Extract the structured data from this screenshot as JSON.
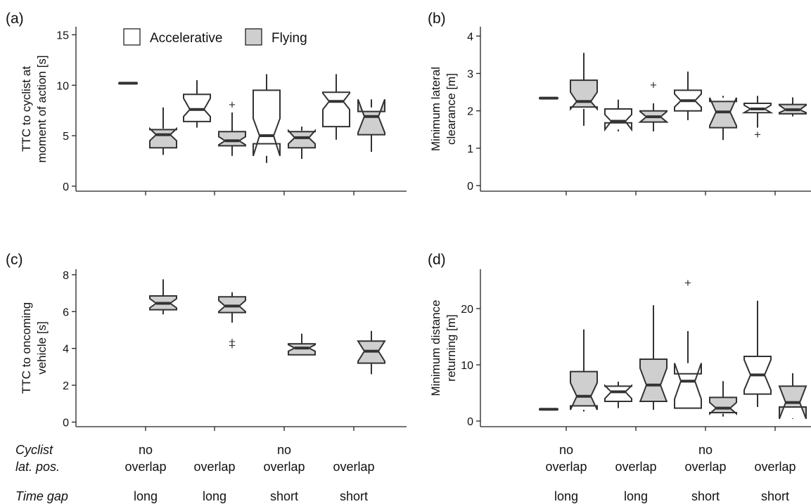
{
  "figure": {
    "legend": [
      {
        "label": "Accelerative",
        "color": "#ffffff"
      },
      {
        "label": "Flying",
        "color": "#cfcfcf"
      }
    ],
    "row_headers": {
      "lat_pos": [
        "Cyclist",
        "lat. pos."
      ],
      "time_gap": "Time gap"
    },
    "colors": {
      "stroke": "#333333",
      "accelerative_fill": "#ffffff",
      "flying_fill": "#cfcfcf"
    }
  },
  "chart_data": [
    {
      "type": "boxplot",
      "panel": "(a)",
      "ylabel": [
        "TTC to cyclist at",
        "moment of action [s]"
      ],
      "ylim": [
        -0.5,
        15.8
      ],
      "yticks": [
        0,
        5,
        10,
        15
      ],
      "categories": [
        {
          "lat_pos": [
            "no",
            "overlap"
          ],
          "time_gap": "long"
        },
        {
          "lat_pos": [
            "overlap"
          ],
          "time_gap": "long"
        },
        {
          "lat_pos": [
            "no",
            "overlap"
          ],
          "time_gap": "short"
        },
        {
          "lat_pos": [
            "overlap"
          ],
          "time_gap": "short"
        }
      ],
      "series": [
        {
          "name": "Accelerative",
          "boxes": [
            {
              "whisker_low": 10.2,
              "q1": 10.2,
              "median": 10.2,
              "q3": 10.2,
              "whisker_high": 10.2,
              "notch_low": 10.2,
              "notch_high": 10.2,
              "outliers": []
            },
            {
              "whisker_low": 5.8,
              "q1": 6.4,
              "median": 7.6,
              "q3": 9.1,
              "whisker_high": 10.5,
              "notch_low": 6.9,
              "notch_high": 8.7,
              "outliers": []
            },
            {
              "whisker_low": 2.3,
              "q1": 4.2,
              "median": 5.0,
              "q3": 9.5,
              "whisker_high": 11.1,
              "notch_low": 3.0,
              "notch_high": 6.7,
              "outliers": []
            },
            {
              "whisker_low": 4.6,
              "q1": 5.9,
              "median": 8.4,
              "q3": 9.3,
              "whisker_high": 11.1,
              "notch_low": 7.6,
              "notch_high": 9.2,
              "outliers": []
            }
          ]
        },
        {
          "name": "Flying",
          "boxes": [
            {
              "whisker_low": 3.1,
              "q1": 3.8,
              "median": 5.1,
              "q3": 5.6,
              "whisker_high": 7.8,
              "notch_low": 4.5,
              "notch_high": 5.7,
              "outliers": []
            },
            {
              "whisker_low": 3.0,
              "q1": 4.0,
              "median": 4.5,
              "q3": 5.4,
              "whisker_high": 7.3,
              "notch_low": 4.1,
              "notch_high": 4.9,
              "outliers": [
                8.1
              ]
            },
            {
              "whisker_low": 2.7,
              "q1": 3.8,
              "median": 4.8,
              "q3": 5.4,
              "whisker_high": 5.9,
              "notch_low": 4.2,
              "notch_high": 5.5,
              "outliers": []
            },
            {
              "whisker_low": 3.4,
              "q1": 5.1,
              "median": 6.9,
              "q3": 7.4,
              "whisker_high": 7.8,
              "notch_low": 5.3,
              "notch_high": 8.6,
              "outliers": []
            }
          ]
        }
      ]
    },
    {
      "type": "boxplot",
      "panel": "(b)",
      "ylabel": [
        "Minimum lateral",
        "clearance [m]"
      ],
      "ylim": [
        -0.15,
        4.25
      ],
      "yticks": [
        0,
        1,
        2,
        3,
        4
      ],
      "categories": [
        {
          "lat_pos": [
            "no",
            "overlap"
          ],
          "time_gap": "long"
        },
        {
          "lat_pos": [
            "overlap"
          ],
          "time_gap": "long"
        },
        {
          "lat_pos": [
            "no",
            "overlap"
          ],
          "time_gap": "short"
        },
        {
          "lat_pos": [
            "overlap"
          ],
          "time_gap": "short"
        }
      ],
      "series": [
        {
          "name": "Accelerative",
          "boxes": [
            {
              "whisker_low": 2.34,
              "q1": 2.34,
              "median": 2.34,
              "q3": 2.34,
              "whisker_high": 2.34,
              "notch_low": 2.34,
              "notch_high": 2.34,
              "outliers": []
            },
            {
              "whisker_low": 1.45,
              "q1": 1.68,
              "median": 1.72,
              "q3": 2.05,
              "whisker_high": 2.3,
              "notch_low": 1.5,
              "notch_high": 1.9,
              "outliers": []
            },
            {
              "whisker_low": 1.75,
              "q1": 2.0,
              "median": 2.27,
              "q3": 2.55,
              "whisker_high": 3.05,
              "notch_low": 2.1,
              "notch_high": 2.45,
              "outliers": []
            },
            {
              "whisker_low": 1.55,
              "q1": 1.95,
              "median": 2.05,
              "q3": 2.2,
              "whisker_high": 2.4,
              "notch_low": 1.95,
              "notch_high": 2.15,
              "outliers": [
                1.37
              ]
            }
          ]
        },
        {
          "name": "Flying",
          "boxes": [
            {
              "whisker_low": 1.6,
              "q1": 2.1,
              "median": 2.25,
              "q3": 2.82,
              "whisker_high": 3.55,
              "notch_low": 2.05,
              "notch_high": 2.5,
              "outliers": []
            },
            {
              "whisker_low": 1.45,
              "q1": 1.7,
              "median": 1.84,
              "q3": 2.0,
              "whisker_high": 2.2,
              "notch_low": 1.7,
              "notch_high": 1.98,
              "outliers": [
                2.7
              ]
            },
            {
              "whisker_low": 1.22,
              "q1": 1.55,
              "median": 1.97,
              "q3": 2.25,
              "whisker_high": 2.4,
              "notch_low": 1.6,
              "notch_high": 2.35,
              "outliers": []
            },
            {
              "whisker_low": 1.85,
              "q1": 1.92,
              "median": 2.03,
              "q3": 2.17,
              "whisker_high": 2.36,
              "notch_low": 1.95,
              "notch_high": 2.15,
              "outliers": []
            }
          ]
        }
      ]
    },
    {
      "type": "boxplot",
      "panel": "(c)",
      "ylabel": [
        "TTC to oncoming",
        "vehicle [s]"
      ],
      "ylim": [
        -0.25,
        8.3
      ],
      "yticks": [
        0,
        2,
        4,
        6,
        8
      ],
      "categories": [
        {
          "lat_pos": [
            "no",
            "overlap"
          ],
          "time_gap": "long"
        },
        {
          "lat_pos": [
            "overlap"
          ],
          "time_gap": "long"
        },
        {
          "lat_pos": [
            "no",
            "overlap"
          ],
          "time_gap": "short"
        },
        {
          "lat_pos": [
            "overlap"
          ],
          "time_gap": "short"
        }
      ],
      "series": [
        {
          "name": "Accelerative",
          "boxes": [
            null,
            null,
            null,
            null
          ]
        },
        {
          "name": "Flying",
          "boxes": [
            {
              "whisker_low": 5.85,
              "q1": 6.1,
              "median": 6.45,
              "q3": 6.85,
              "whisker_high": 7.75,
              "notch_low": 6.2,
              "notch_high": 6.7,
              "outliers": []
            },
            {
              "whisker_low": 5.4,
              "q1": 5.95,
              "median": 6.3,
              "q3": 6.8,
              "whisker_high": 7.05,
              "notch_low": 6.0,
              "notch_high": 6.6,
              "outliers": [
                4.38,
                4.18
              ]
            },
            {
              "whisker_low": 3.65,
              "q1": 3.65,
              "median": 4.02,
              "q3": 4.25,
              "whisker_high": 4.8,
              "notch_low": 3.85,
              "notch_high": 4.2,
              "outliers": []
            },
            {
              "whisker_low": 2.6,
              "q1": 3.2,
              "median": 3.85,
              "q3": 4.4,
              "whisker_high": 4.95,
              "notch_low": 3.3,
              "notch_high": 4.4,
              "outliers": []
            }
          ]
        }
      ]
    },
    {
      "type": "boxplot",
      "panel": "(d)",
      "ylabel": [
        "Minimum distance",
        "returning [m]"
      ],
      "ylim": [
        -1.0,
        27.0
      ],
      "yticks": [
        0,
        10,
        20
      ],
      "categories": [
        {
          "lat_pos": [
            "no",
            "overlap"
          ],
          "time_gap": "long"
        },
        {
          "lat_pos": [
            "overlap"
          ],
          "time_gap": "long"
        },
        {
          "lat_pos": [
            "no",
            "overlap"
          ],
          "time_gap": "short"
        },
        {
          "lat_pos": [
            "overlap"
          ],
          "time_gap": "short"
        }
      ],
      "series": [
        {
          "name": "Accelerative",
          "boxes": [
            {
              "whisker_low": 2.1,
              "q1": 2.1,
              "median": 2.1,
              "q3": 2.1,
              "whisker_high": 2.1,
              "notch_low": 2.1,
              "notch_high": 2.1,
              "outliers": []
            },
            {
              "whisker_low": 2.3,
              "q1": 3.5,
              "median": 5.2,
              "q3": 6.2,
              "whisker_high": 7.0,
              "notch_low": 4.0,
              "notch_high": 6.3,
              "outliers": []
            },
            {
              "whisker_low": 2.2,
              "q1": 2.3,
              "median": 7.1,
              "q3": 8.4,
              "whisker_high": 16.0,
              "notch_low": 3.9,
              "notch_high": 10.3,
              "outliers": [
                24.6
              ]
            },
            {
              "whisker_low": 2.5,
              "q1": 4.8,
              "median": 8.2,
              "q3": 11.5,
              "whisker_high": 21.4,
              "notch_low": 5.5,
              "notch_high": 10.9,
              "outliers": []
            }
          ]
        },
        {
          "name": "Flying",
          "boxes": [
            {
              "whisker_low": 1.7,
              "q1": 2.7,
              "median": 4.4,
              "q3": 8.8,
              "whisker_high": 16.3,
              "notch_low": 2.0,
              "notch_high": 6.8,
              "outliers": []
            },
            {
              "whisker_low": 2.0,
              "q1": 3.5,
              "median": 6.4,
              "q3": 11.0,
              "whisker_high": 20.6,
              "notch_low": 3.4,
              "notch_high": 9.4,
              "outliers": []
            },
            {
              "whisker_low": 0.8,
              "q1": 1.5,
              "median": 2.3,
              "q3": 4.2,
              "whisker_high": 7.1,
              "notch_low": 1.3,
              "notch_high": 3.3,
              "outliers": []
            },
            {
              "whisker_low": 0.5,
              "q1": 2.5,
              "median": 3.3,
              "q3": 6.2,
              "whisker_high": 8.5,
              "notch_low": 0.4,
              "notch_high": 6.2,
              "outliers": []
            }
          ]
        }
      ]
    }
  ]
}
